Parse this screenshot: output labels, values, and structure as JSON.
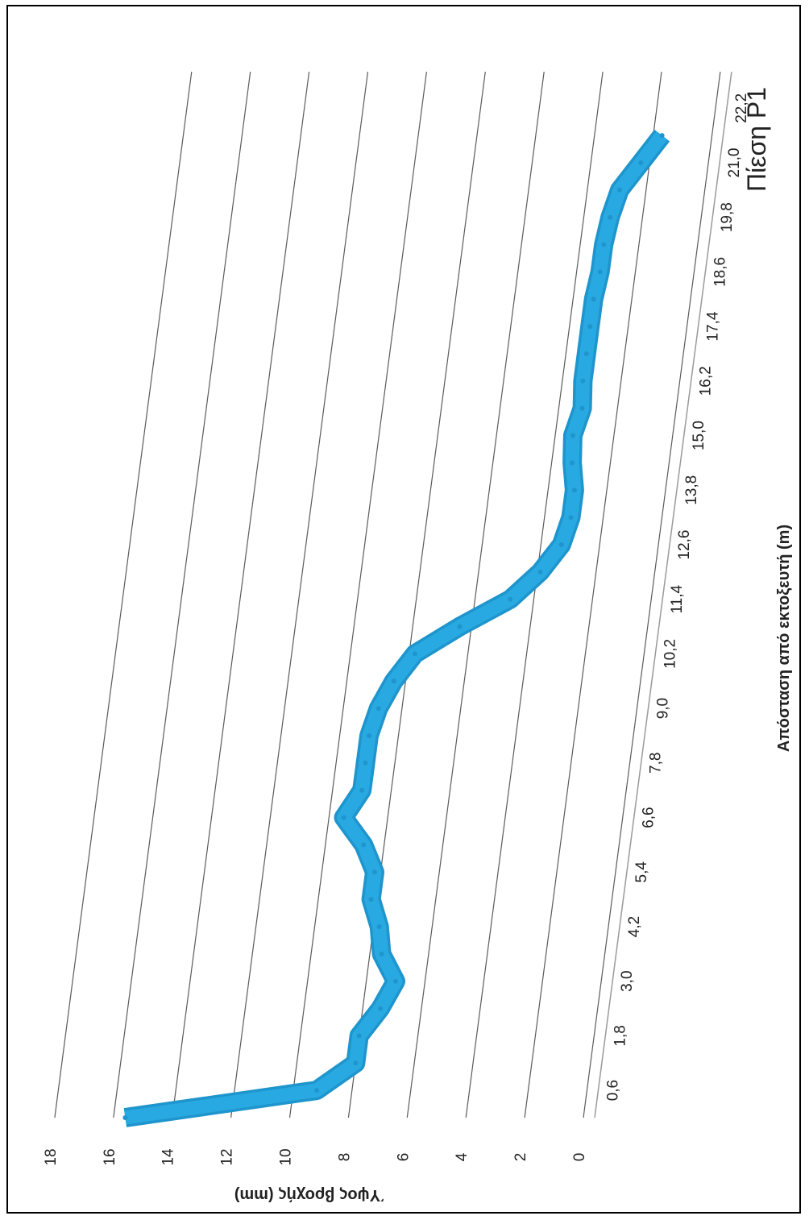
{
  "colors": {
    "series": "#29A9E1",
    "series_dark": "#1E95CC",
    "gridline": "#5b5b5b",
    "text": "#222222"
  },
  "chart_data": {
    "type": "line",
    "title": "Πίεση Ρ1",
    "xlabel": "Απόσταση από εκτοξευτή (m)",
    "ylabel": "Ύψος βροχής (mm)",
    "ylim": [
      0,
      18
    ],
    "yticks": [
      "0",
      "2",
      "4",
      "6",
      "8",
      "10",
      "12",
      "14",
      "16",
      "18"
    ],
    "xtick_labels": [
      "0,6",
      "1,8",
      "3,0",
      "4,2",
      "5,4",
      "6,6",
      "7,8",
      "9,0",
      "10,2",
      "11,4",
      "12,6",
      "13,8",
      "15,0",
      "16,2",
      "17,4",
      "18,6",
      "19,8",
      "21,0",
      "22,2"
    ],
    "grid": true,
    "view": "3d-line, rotated 90° counter-clockwise",
    "x": [
      0.0,
      0.6,
      1.2,
      1.8,
      2.4,
      3.0,
      3.6,
      4.2,
      4.8,
      5.4,
      6.0,
      6.6,
      7.2,
      7.8,
      8.4,
      9.0,
      9.6,
      10.2,
      10.8,
      11.4,
      12.0,
      12.6,
      13.2,
      13.8,
      14.4,
      15.0,
      15.6,
      16.2,
      16.8,
      17.4,
      18.0,
      18.6,
      19.2,
      19.8,
      20.4,
      21.0,
      21.6
    ],
    "series": [
      {
        "values": [
          15.6,
          9.2,
          8.0,
          8.0,
          7.4,
          7.0,
          7.6,
          7.8,
          8.2,
          8.2,
          8.7,
          9.5,
          9.0,
          9.0,
          9.0,
          8.8,
          8.4,
          7.8,
          6.4,
          4.8,
          3.9,
          3.3,
          3.1,
          3.1,
          3.3,
          3.4,
          3.2,
          3.3,
          3.3,
          3.3,
          3.3,
          3.2,
          3.2,
          3.1,
          2.9,
          2.3,
          1.7
        ]
      }
    ]
  }
}
